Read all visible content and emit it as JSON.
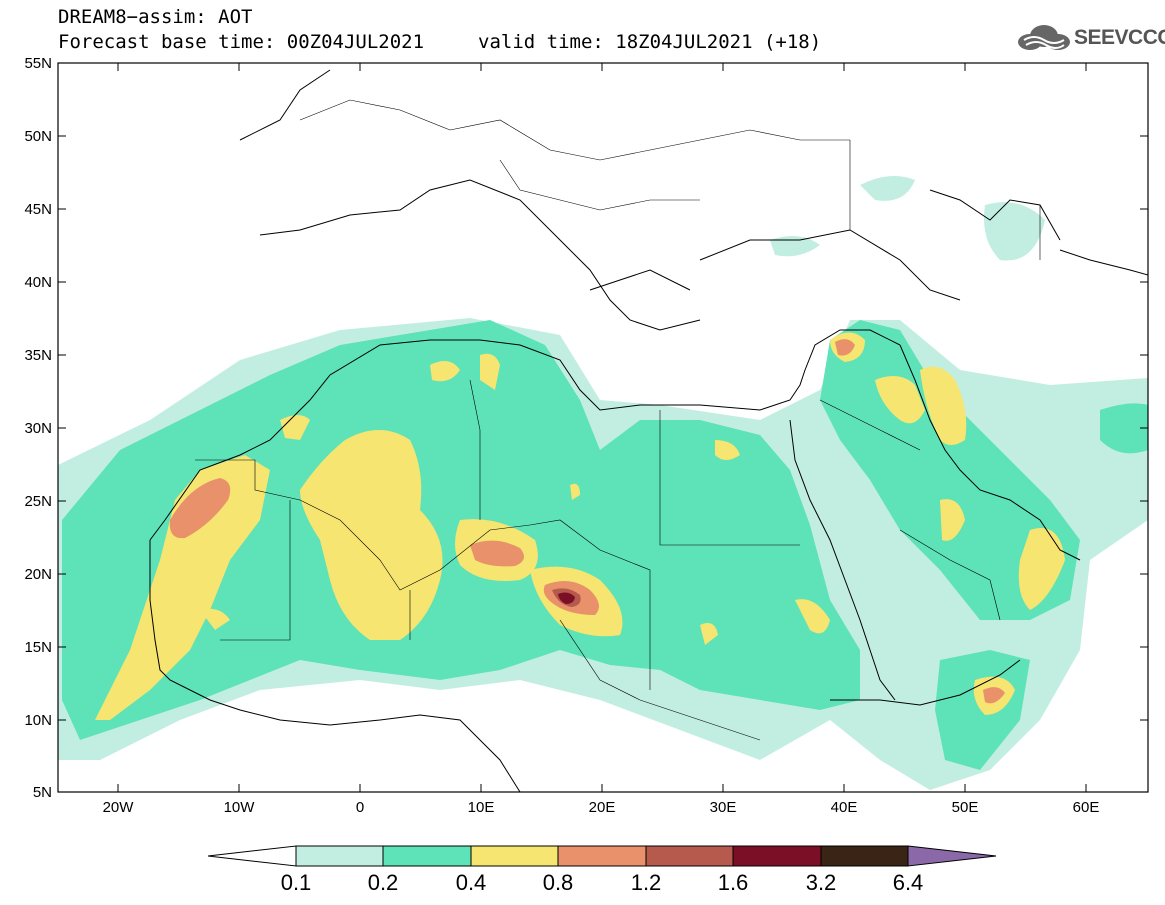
{
  "header": {
    "title_line1": "DREAM8−assim: AOT",
    "title_line2": "Forecast base time: 00Z04JUL2021",
    "valid_time": "valid time: 18Z04JUL2021 (+18)"
  },
  "logo": {
    "text": "SEEVCCC",
    "icon": "cloud-icon"
  },
  "map": {
    "extent": {
      "lon_min": -25,
      "lon_max": 65,
      "lat_min": 5,
      "lat_max": 55
    },
    "lat_labels": [
      "55N",
      "50N",
      "45N",
      "40N",
      "35N",
      "30N",
      "25N",
      "20N",
      "15N",
      "10N",
      "5N"
    ],
    "lon_labels": [
      "20W",
      "10W",
      "0",
      "10E",
      "20E",
      "30E",
      "40E",
      "50E",
      "60E"
    ]
  },
  "colorbar": {
    "labels": [
      "0.1",
      "0.2",
      "0.4",
      "0.8",
      "1.2",
      "1.6",
      "3.2",
      "6.4"
    ],
    "colors": [
      "#ffffff",
      "#c2eee2",
      "#5ee2b8",
      "#f6e571",
      "#e8916a",
      "#b65a4e",
      "#7a0f26",
      "#3a2415",
      "#8b68a8"
    ]
  },
  "colors": {
    "c1": "#c2eee2",
    "c2": "#5ee2b8",
    "c3": "#f6e571",
    "c4": "#e8916a",
    "c5": "#b65a4e",
    "c6": "#7a0f26"
  }
}
